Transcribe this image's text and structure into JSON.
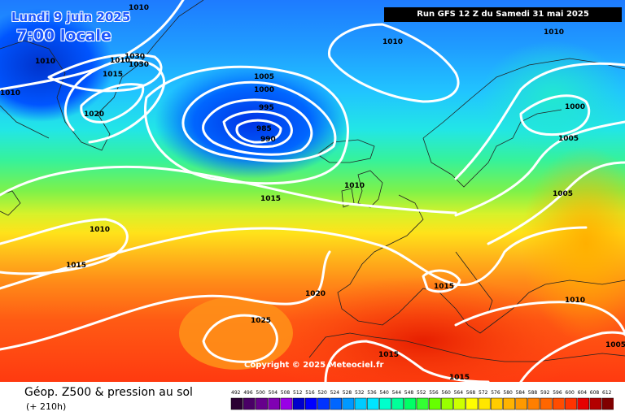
{
  "header": {
    "date": "Lundi 9 juin 2025",
    "time": "7:00 locale",
    "run": "Run GFS 12 Z du Samedi 31 mai 2025"
  },
  "footer": {
    "copyright": "Copyright © 2025 Meteociel.fr",
    "map_title": "Géop. Z500 & pression au sol",
    "lead_time": "(+ 210h)"
  },
  "pressure_labels": [
    "1010",
    "1010",
    "1010",
    "1030",
    "1030",
    "1010",
    "1015",
    "1020",
    "1010",
    "1005",
    "1000",
    "995",
    "985",
    "990",
    "1010",
    "1000",
    "1005",
    "1015",
    "1010",
    "1005",
    "1010",
    "1015",
    "1015",
    "1020",
    "1025",
    "1010",
    "1015",
    "1015",
    "1005"
  ],
  "legend": {
    "values": [
      "492",
      "496",
      "500",
      "504",
      "508",
      "512",
      "516",
      "520",
      "524",
      "528",
      "532",
      "536",
      "540",
      "544",
      "548",
      "552",
      "556",
      "560",
      "564",
      "568",
      "572",
      "576",
      "580",
      "584",
      "588",
      "592",
      "596",
      "600",
      "604",
      "608",
      "612"
    ],
    "colors": [
      "#2b0033",
      "#4a0066",
      "#66008c",
      "#8000b3",
      "#9900e6",
      "#0000cc",
      "#0000ff",
      "#0033ff",
      "#0066ff",
      "#0099ff",
      "#00ccff",
      "#00e5ff",
      "#00ffcc",
      "#00ff99",
      "#00ff66",
      "#33ff33",
      "#66ff00",
      "#99ff00",
      "#ccff00",
      "#ffff00",
      "#ffe600",
      "#ffcc00",
      "#ffb300",
      "#ff9900",
      "#ff7f00",
      "#ff6600",
      "#ff4c00",
      "#ff3300",
      "#e60000",
      "#b30000",
      "#800000"
    ]
  }
}
